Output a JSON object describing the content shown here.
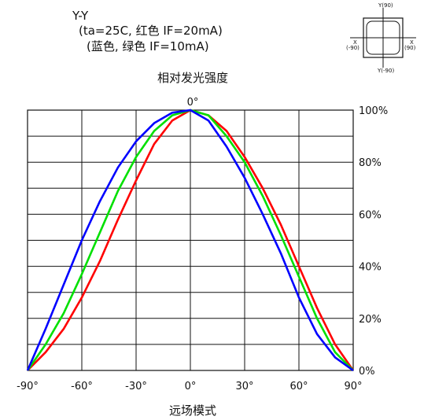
{
  "conditions": {
    "line1": "Y-Y",
    "line2": "(ta=25C, 红色 IF=20mA)",
    "line3": "(蓝色, 绿色 IF=10mA)"
  },
  "diagram": {
    "top": "Y(90)",
    "bottom": "Y(-90)",
    "left_x": "X",
    "left_deg": "(-90)",
    "right_x": "X",
    "right_deg": "(90)"
  },
  "chart_data": {
    "type": "line",
    "title": "相对发光强度",
    "xlabel": "远场模式",
    "ylabel": "",
    "top_label": "0°",
    "xlim": [
      -90,
      90
    ],
    "ylim": [
      0,
      100
    ],
    "grid": true,
    "x_ticks": [
      -90,
      -60,
      -30,
      0,
      30,
      60,
      90
    ],
    "x_tick_labels": [
      "-90°",
      "-60°",
      "-30°",
      "0°",
      "30°",
      "60°",
      "90°"
    ],
    "y_ticks": [
      0,
      20,
      40,
      60,
      80,
      100
    ],
    "y_tick_labels": [
      "0%",
      "20%",
      "40%",
      "60%",
      "80%",
      "100%"
    ],
    "x": [
      -90,
      -80,
      -70,
      -60,
      -50,
      -40,
      -30,
      -20,
      -10,
      0,
      10,
      20,
      30,
      40,
      50,
      60,
      70,
      80,
      90
    ],
    "series": [
      {
        "color": "#ff0000",
        "values": [
          0,
          7,
          16,
          28,
          42,
          58,
          73,
          87,
          96,
          100,
          98,
          92,
          82,
          70,
          56,
          40,
          24,
          10,
          0
        ]
      },
      {
        "color": "#00e000",
        "values": [
          0,
          10,
          22,
          37,
          53,
          69,
          82,
          92,
          98,
          100,
          98,
          90,
          80,
          67,
          52,
          36,
          20,
          7,
          0
        ]
      },
      {
        "color": "#0000ff",
        "values": [
          0,
          16,
          33,
          50,
          65,
          78,
          88,
          95,
          99,
          100,
          96,
          86,
          74,
          60,
          45,
          28,
          14,
          5,
          0
        ]
      }
    ]
  }
}
